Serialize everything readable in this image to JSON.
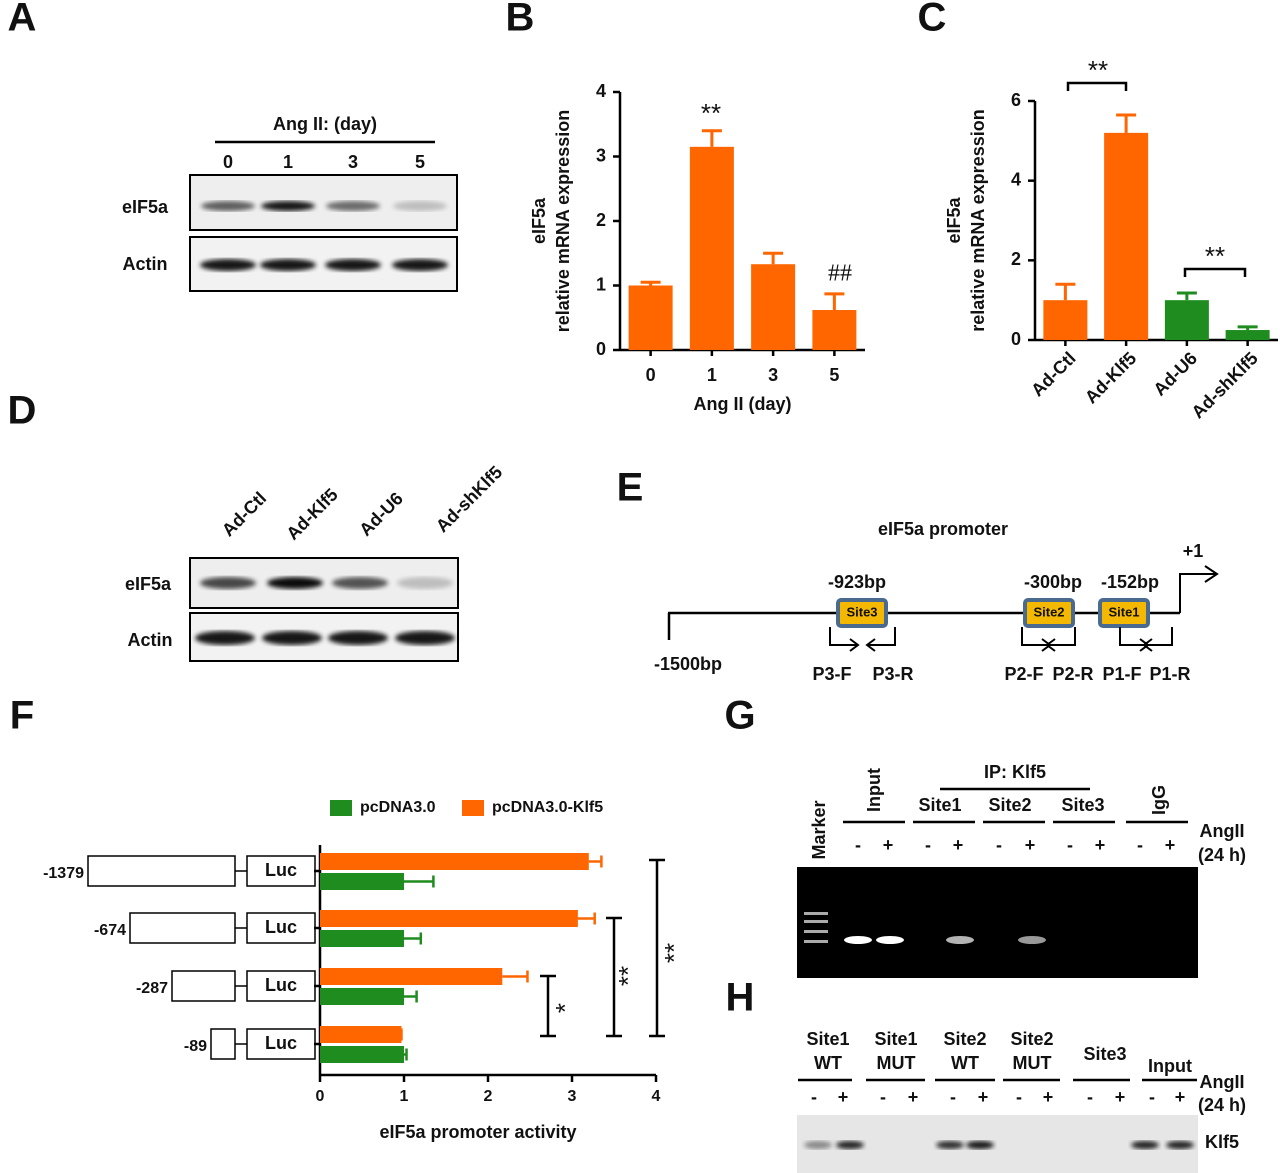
{
  "panel_labels": [
    "A",
    "B",
    "C",
    "D",
    "E",
    "F",
    "G",
    "H"
  ],
  "blot_a": {
    "header": "Ang II: (day)",
    "lanes": [
      "0",
      "1",
      "3",
      "5"
    ],
    "rows": [
      "eIF5a",
      "Actin"
    ]
  },
  "blot_d": {
    "lanes": [
      "Ad-Ctl",
      "Ad-Klf5",
      "Ad-U6",
      "Ad-shKlf5"
    ],
    "rows": [
      "eIF5a",
      "Actin"
    ]
  },
  "diagram_e": {
    "title": "eIF5a promoter",
    "start": "-1500bp",
    "tss": "+1",
    "sites": [
      {
        "name": "Site3",
        "position": "-923bp"
      },
      {
        "name": "Site2",
        "position": "-300bp"
      },
      {
        "name": "Site1",
        "position": "-152bp"
      }
    ],
    "primers": [
      "P3-F",
      "P3-R",
      "P2-F",
      "P2-R",
      "P1-F",
      "P1-R"
    ]
  },
  "gel_g": {
    "marker": "Marker",
    "input": "Input",
    "ip_header": "IP: Klf5",
    "ip_lanes": [
      "Site1",
      "Site2",
      "Site3"
    ],
    "igg": "IgG",
    "treatment": "AngII",
    "time": "(24 h)",
    "signs": [
      "-",
      "+"
    ]
  },
  "blot_h": {
    "lanes": [
      [
        "Site1",
        "WT"
      ],
      [
        "Site1",
        "MUT"
      ],
      [
        "Site2",
        "WT"
      ],
      [
        "Site2",
        "MUT"
      ],
      [
        "Site3"
      ],
      [
        "Input"
      ]
    ],
    "treatment": "AngII",
    "time": "(24 h)",
    "protein": "Klf5",
    "signs": [
      "-",
      "+"
    ]
  },
  "chart_data": [
    {
      "type": "bar",
      "categories": [
        "0",
        "1",
        "3",
        "5"
      ],
      "values": [
        1.0,
        3.15,
        1.33,
        0.62
      ],
      "errors": [
        0.05,
        0.25,
        0.17,
        0.25
      ],
      "color": "#ff6600",
      "ylim": [
        0,
        4
      ],
      "yticks": [
        0,
        1,
        2,
        3,
        4
      ],
      "y_label": [
        "eIF5a",
        "relative mRNA  expression"
      ],
      "x_label": "Ang II (day)",
      "annotations": [
        "**",
        "##"
      ]
    },
    {
      "type": "bar",
      "categories": [
        "Ad-Ctl",
        "Ad-Klf5",
        "Ad-U6",
        "Ad-shKlf5"
      ],
      "values": [
        1.0,
        5.2,
        1.0,
        0.25
      ],
      "errors": [
        0.4,
        0.45,
        0.18,
        0.08
      ],
      "colors": [
        "#ff6600",
        "#ff6600",
        "#1e8c1e",
        "#1e8c1e"
      ],
      "ylim": [
        0,
        6
      ],
      "yticks": [
        0,
        2,
        4,
        6
      ],
      "y_label": [
        "eIF5a",
        "relative mRNA  expression"
      ],
      "annotations": [
        "**",
        "**"
      ]
    },
    {
      "type": "hbar",
      "categories": [
        "-1379",
        "-674",
        "-287",
        "-89"
      ],
      "reporter": "Luc",
      "series": [
        {
          "name": "pcDNA3.0",
          "color": "#1e8c1e",
          "values": [
            1.0,
            1.0,
            1.0,
            1.0
          ],
          "errors": [
            0.35,
            0.2,
            0.15,
            0.03
          ]
        },
        {
          "name": "pcDNA3.0-Klf5",
          "color": "#ff6600",
          "values": [
            3.2,
            3.07,
            2.17,
            0.97
          ],
          "errors": [
            0.15,
            0.2,
            0.3,
            0.0
          ]
        }
      ],
      "xlim": [
        0,
        4
      ],
      "xticks": [
        0,
        1,
        2,
        3,
        4
      ],
      "x_label": "eIF5a promoter activity",
      "annotations": [
        "*",
        "**",
        "**"
      ]
    }
  ]
}
